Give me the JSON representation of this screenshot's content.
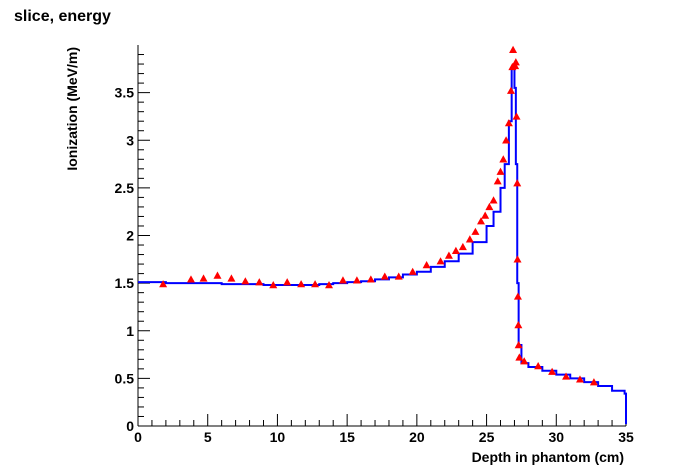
{
  "chart_data": {
    "type": "line",
    "title": "slice, energy",
    "xlabel": "Depth in phantom (cm)",
    "ylabel": "Ionization (MeV/m)",
    "xlim": [
      0,
      35
    ],
    "ylim": [
      0,
      4.0
    ],
    "x_ticks": [
      0,
      5,
      10,
      15,
      20,
      25,
      30,
      35
    ],
    "x_tick_labels": [
      "0",
      "5",
      "10",
      "15",
      "20",
      "25",
      "30",
      "35"
    ],
    "y_ticks": [
      0,
      0.5,
      1,
      1.5,
      2,
      2.5,
      3,
      3.5
    ],
    "y_tick_labels": [
      "0",
      "0.5",
      "1",
      "1.5",
      "2",
      "2.5",
      "3",
      "3.5"
    ],
    "grid": false,
    "colors": {
      "curve": "#0000ff",
      "markers": "#ff0000",
      "axes": "#000000"
    },
    "series": [
      {
        "style": "histogram-line",
        "points": [
          [
            0,
            1.51
          ],
          [
            1,
            1.51
          ],
          [
            2,
            1.5
          ],
          [
            3,
            1.5
          ],
          [
            4,
            1.5
          ],
          [
            5,
            1.5
          ],
          [
            6,
            1.49
          ],
          [
            7,
            1.49
          ],
          [
            8,
            1.49
          ],
          [
            9,
            1.48
          ],
          [
            10,
            1.48
          ],
          [
            11,
            1.48
          ],
          [
            12,
            1.48
          ],
          [
            13,
            1.49
          ],
          [
            14,
            1.5
          ],
          [
            15,
            1.51
          ],
          [
            16,
            1.52
          ],
          [
            17,
            1.54
          ],
          [
            18,
            1.56
          ],
          [
            19,
            1.59
          ],
          [
            20,
            1.62
          ],
          [
            21,
            1.67
          ],
          [
            22,
            1.73
          ],
          [
            23,
            1.81
          ],
          [
            24,
            1.93
          ],
          [
            25,
            2.1
          ],
          [
            25.5,
            2.25
          ],
          [
            26,
            2.5
          ],
          [
            26.3,
            2.75
          ],
          [
            26.6,
            3.2
          ],
          [
            26.8,
            3.75
          ],
          [
            27.0,
            3.55
          ],
          [
            27.1,
            2.75
          ],
          [
            27.2,
            1.5
          ],
          [
            27.3,
            0.85
          ],
          [
            27.5,
            0.66
          ],
          [
            28,
            0.62
          ],
          [
            29,
            0.58
          ],
          [
            30,
            0.54
          ],
          [
            31,
            0.5
          ],
          [
            32,
            0.46
          ],
          [
            33,
            0.42
          ],
          [
            34,
            0.37
          ],
          [
            34.9,
            0.34
          ],
          [
            35,
            0.02
          ]
        ]
      },
      {
        "style": "markers",
        "marker": "triangle",
        "points": [
          [
            1.8,
            1.49
          ],
          [
            3.8,
            1.54
          ],
          [
            4.7,
            1.55
          ],
          [
            5.7,
            1.58
          ],
          [
            6.7,
            1.55
          ],
          [
            7.7,
            1.52
          ],
          [
            8.7,
            1.51
          ],
          [
            9.7,
            1.48
          ],
          [
            10.7,
            1.51
          ],
          [
            11.7,
            1.49
          ],
          [
            12.7,
            1.49
          ],
          [
            13.7,
            1.48
          ],
          [
            14.7,
            1.53
          ],
          [
            15.7,
            1.53
          ],
          [
            16.7,
            1.54
          ],
          [
            17.7,
            1.57
          ],
          [
            18.7,
            1.57
          ],
          [
            19.7,
            1.62
          ],
          [
            20.7,
            1.69
          ],
          [
            21.7,
            1.73
          ],
          [
            22.3,
            1.79
          ],
          [
            22.8,
            1.84
          ],
          [
            23.3,
            1.88
          ],
          [
            23.8,
            1.96
          ],
          [
            24.2,
            2.04
          ],
          [
            24.6,
            2.15
          ],
          [
            24.9,
            2.21
          ],
          [
            25.2,
            2.3
          ],
          [
            25.5,
            2.37
          ],
          [
            25.8,
            2.57
          ],
          [
            26.0,
            2.67
          ],
          [
            26.2,
            2.8
          ],
          [
            26.4,
            3.0
          ],
          [
            26.6,
            3.18
          ],
          [
            26.75,
            3.52
          ],
          [
            26.85,
            3.77
          ],
          [
            26.9,
            3.95
          ],
          [
            27.05,
            3.78
          ],
          [
            27.1,
            3.82
          ],
          [
            27.15,
            3.25
          ],
          [
            27.2,
            2.55
          ],
          [
            27.22,
            1.75
          ],
          [
            27.25,
            1.36
          ],
          [
            27.28,
            1.06
          ],
          [
            27.3,
            0.85
          ],
          [
            27.35,
            0.72
          ],
          [
            27.7,
            0.68
          ],
          [
            28.7,
            0.63
          ],
          [
            29.7,
            0.57
          ],
          [
            30.7,
            0.52
          ],
          [
            31.7,
            0.49
          ],
          [
            32.7,
            0.46
          ]
        ]
      }
    ]
  }
}
